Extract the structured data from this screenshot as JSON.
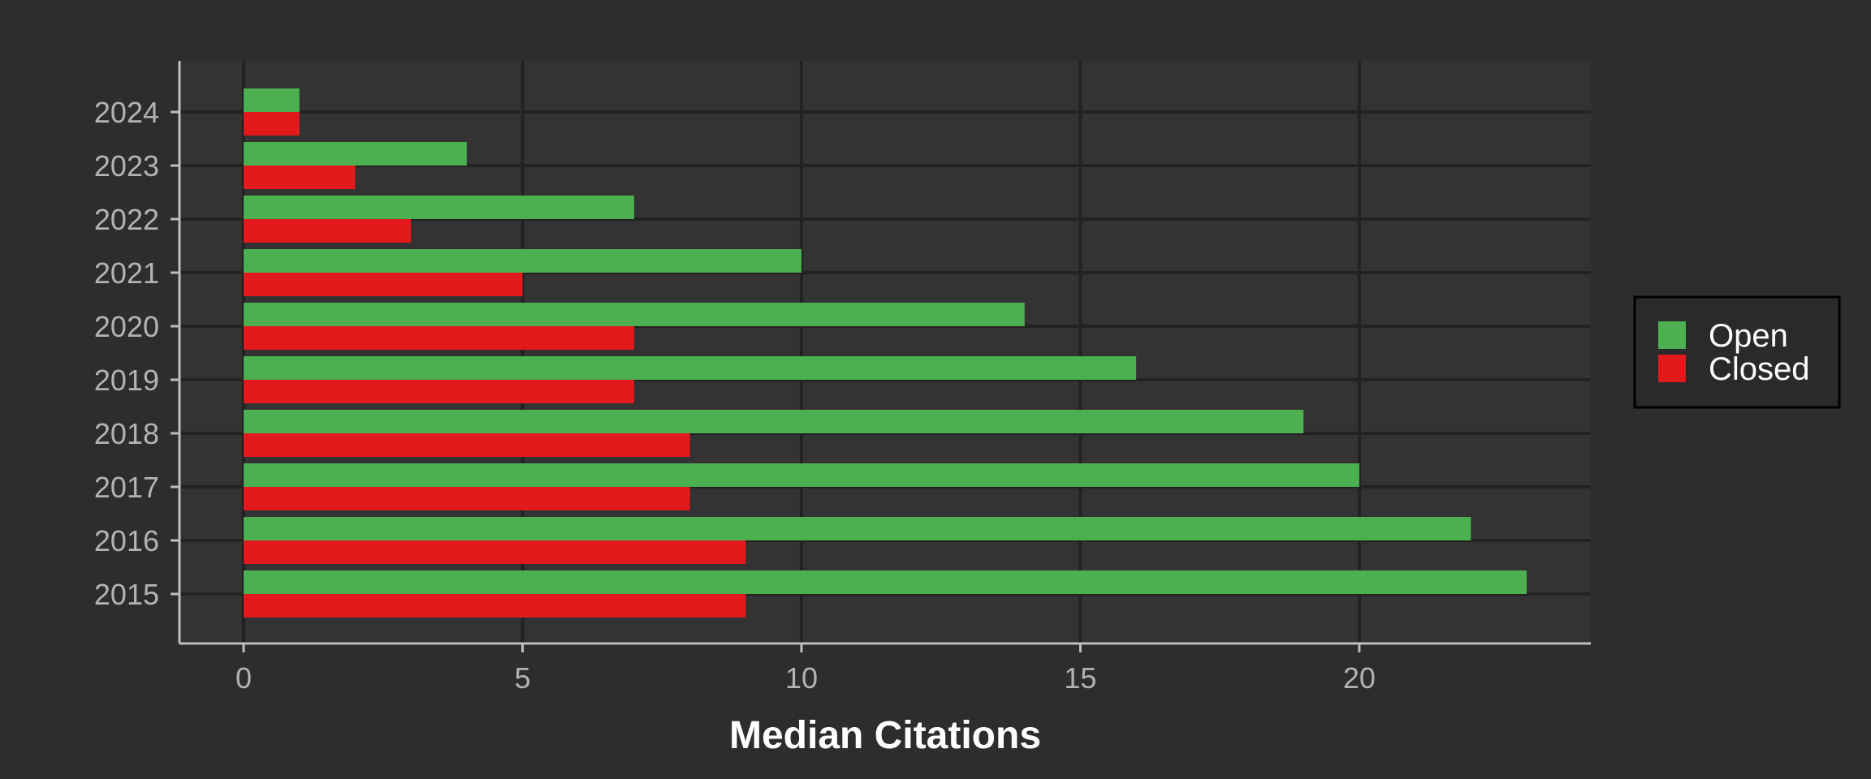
{
  "chart_data": {
    "type": "bar",
    "orientation": "horizontal",
    "categories": [
      "2024",
      "2023",
      "2022",
      "2021",
      "2020",
      "2019",
      "2018",
      "2017",
      "2016",
      "2015"
    ],
    "series": [
      {
        "name": "Open",
        "values": [
          1,
          4,
          7,
          10,
          14,
          16,
          19,
          20,
          22,
          23
        ]
      },
      {
        "name": "Closed",
        "values": [
          1,
          2,
          3,
          5,
          7,
          7,
          8,
          8,
          9,
          9
        ]
      }
    ],
    "x_ticks": [
      "0",
      "5",
      "10",
      "15",
      "20"
    ],
    "xlim": [
      -1.15,
      24.15
    ],
    "xlabel": "Median Citations",
    "ylabel": "",
    "title": "",
    "grid": true,
    "legend_position": "right"
  },
  "colors": {
    "page_background": "#2d2d2d",
    "panel_background": "#333333",
    "grid": "#222222",
    "axis_line": "#bdbdbd",
    "Open": "#4caf50",
    "Closed": "#e31a1c",
    "legend_background": "#2a2a2a",
    "legend_border": "#000000"
  }
}
